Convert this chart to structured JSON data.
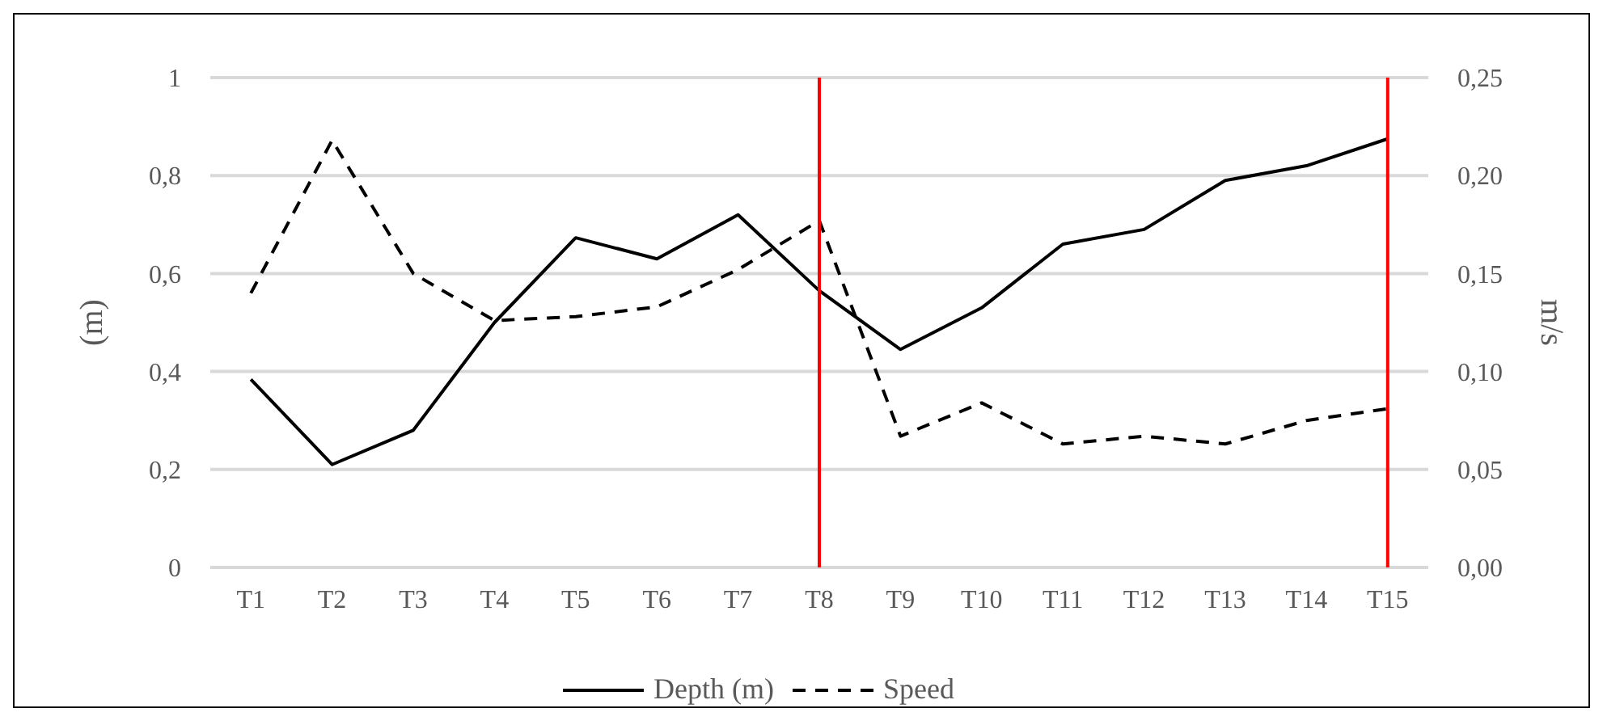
{
  "chart_data": {
    "type": "line",
    "ylabel": "(m)",
    "y2label": "m/s",
    "categories": [
      "T1",
      "T2",
      "T3",
      "T4",
      "T5",
      "T6",
      "T7",
      "T8",
      "T9",
      "T10",
      "T11",
      "T12",
      "T13",
      "T14",
      "T15"
    ],
    "series": [
      {
        "name": "Depth (m)",
        "color": "#000000",
        "line_style": "solid",
        "values": [
          0.384,
          0.21,
          0.28,
          0.5,
          0.673,
          0.63,
          0.72,
          0.565,
          0.445,
          0.53,
          0.66,
          0.69,
          0.79,
          0.82,
          0.875
        ]
      },
      {
        "name": "Speed",
        "color": "#000000",
        "line_style": "dashed",
        "axis": "y2",
        "values": [
          0.14,
          0.218,
          0.15,
          0.126,
          0.128,
          0.133,
          0.152,
          0.177,
          0.067,
          0.084,
          0.063,
          0.067,
          0.063,
          0.075,
          0.081
        ]
      }
    ],
    "ylim": [
      0,
      1
    ],
    "yticks": [
      0,
      {
        "value": 0.2,
        "label": "0,2"
      },
      {
        "value": 0.4,
        "label": "0,4"
      },
      {
        "value": 0.6,
        "label": "0,6"
      },
      {
        "value": 0.8,
        "label": "0,8"
      },
      1
    ],
    "y2lim": [
      0,
      0.25
    ],
    "y2ticks": [
      {
        "value": 0,
        "label": "0,00"
      },
      {
        "value": 0.05,
        "label": "0,05"
      },
      {
        "value": 0.1,
        "label": "0,10"
      },
      {
        "value": 0.15,
        "label": "0,15"
      },
      {
        "value": 0.2,
        "label": "0,20"
      },
      {
        "value": 0.25,
        "label": "0,25"
      }
    ],
    "ref_lines": [
      {
        "axis": "x",
        "value": "T8",
        "color": "#ff0000"
      },
      {
        "axis": "x",
        "value": "T15",
        "color": "#ff0000"
      }
    ],
    "grid": "y",
    "legend": "bottom",
    "marker": "none"
  }
}
